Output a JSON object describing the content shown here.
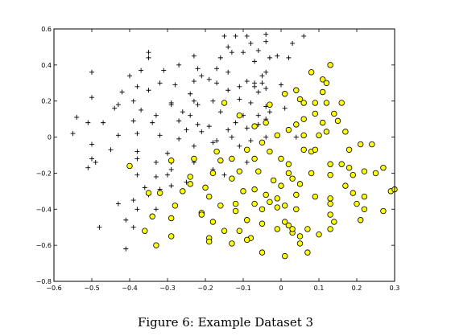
{
  "caption": "Figure 6: Example Dataset 3",
  "chart_data": {
    "type": "scatter",
    "title": "",
    "xlabel": "",
    "ylabel": "",
    "xlim": [
      -0.6,
      0.3
    ],
    "ylim": [
      -0.8,
      0.6
    ],
    "xticks": [
      -0.6,
      -0.5,
      -0.4,
      -0.3,
      -0.2,
      -0.1,
      0,
      0.1,
      0.2,
      0.3
    ],
    "yticks": [
      -0.8,
      -0.6,
      -0.4,
      -0.2,
      0,
      0.2,
      0.4,
      0.6
    ],
    "xtick_labels": [
      "−0.6",
      "−0.5",
      "−0.4",
      "−0.3",
      "−0.2",
      "−0.1",
      "0",
      "0.1",
      "0.2",
      "0.3"
    ],
    "ytick_labels": [
      "−0.8",
      "−0.6",
      "−0.4",
      "−0.2",
      "0",
      "0.2",
      "0.4",
      "0.6"
    ],
    "grid": false,
    "colors": {
      "positive": "#000000",
      "negative_fill": "#ffff00",
      "negative_edge": "#000000"
    },
    "series": [
      {
        "marker": "plus",
        "points": [
          [
            -0.09,
            0.56
          ],
          [
            -0.04,
            0.57
          ],
          [
            0.06,
            0.56
          ],
          [
            -0.15,
            0.56
          ],
          [
            -0.12,
            0.56
          ],
          [
            -0.08,
            0.52
          ],
          [
            -0.04,
            0.53
          ],
          [
            -0.14,
            0.5
          ],
          [
            -0.06,
            0.48
          ],
          [
            -0.13,
            0.47
          ],
          [
            -0.1,
            0.47
          ],
          [
            -0.23,
            0.45
          ],
          [
            -0.16,
            0.44
          ],
          [
            -0.03,
            0.44
          ],
          [
            -0.01,
            0.45
          ],
          [
            0.02,
            0.44
          ],
          [
            -0.07,
            0.42
          ],
          [
            0.03,
            0.52
          ],
          [
            -0.35,
            0.47
          ],
          [
            -0.35,
            0.44
          ],
          [
            -0.27,
            0.4
          ],
          [
            -0.31,
            0.37
          ],
          [
            -0.37,
            0.37
          ],
          [
            -0.22,
            0.38
          ],
          [
            -0.17,
            0.38
          ],
          [
            -0.14,
            0.36
          ],
          [
            -0.05,
            0.34
          ],
          [
            -0.07,
            0.3
          ],
          [
            -0.04,
            0.36
          ],
          [
            -0.5,
            0.36
          ],
          [
            -0.4,
            0.34
          ],
          [
            -0.32,
            0.3
          ],
          [
            -0.28,
            0.29
          ],
          [
            -0.23,
            0.31
          ],
          [
            -0.21,
            0.34
          ],
          [
            -0.19,
            0.32
          ],
          [
            -0.17,
            0.3
          ],
          [
            -0.11,
            0.28
          ],
          [
            -0.07,
            0.28
          ],
          [
            -0.09,
            0.31
          ],
          [
            -0.05,
            0.3
          ],
          [
            -0.38,
            0.28
          ],
          [
            -0.35,
            0.26
          ],
          [
            -0.42,
            0.25
          ],
          [
            -0.24,
            0.24
          ],
          [
            -0.14,
            0.26
          ],
          [
            -0.06,
            0.25
          ],
          [
            -0.04,
            0.27
          ],
          [
            0.0,
            0.29
          ],
          [
            -0.5,
            0.22
          ],
          [
            -0.43,
            0.18
          ],
          [
            -0.39,
            0.2
          ],
          [
            -0.29,
            0.19
          ],
          [
            -0.29,
            0.18
          ],
          [
            -0.23,
            0.2
          ],
          [
            -0.22,
            0.18
          ],
          [
            -0.18,
            0.2
          ],
          [
            -0.11,
            0.21
          ],
          [
            -0.08,
            0.19
          ],
          [
            -0.04,
            0.17
          ],
          [
            0.01,
            0.16
          ],
          [
            -0.44,
            0.16
          ],
          [
            -0.37,
            0.15
          ],
          [
            -0.33,
            0.12
          ],
          [
            -0.26,
            0.14
          ],
          [
            -0.24,
            0.12
          ],
          [
            -0.16,
            0.14
          ],
          [
            -0.1,
            0.12
          ],
          [
            -0.06,
            0.12
          ],
          [
            -0.03,
            0.14
          ],
          [
            -0.54,
            0.11
          ],
          [
            -0.51,
            0.08
          ],
          [
            -0.47,
            0.08
          ],
          [
            -0.39,
            0.09
          ],
          [
            -0.34,
            0.08
          ],
          [
            -0.27,
            0.09
          ],
          [
            -0.22,
            0.07
          ],
          [
            -0.19,
            0.06
          ],
          [
            -0.14,
            0.04
          ],
          [
            -0.12,
            0.08
          ],
          [
            -0.09,
            0.05
          ],
          [
            -0.04,
            0.1
          ],
          [
            -0.06,
            0.07
          ],
          [
            -0.55,
            0.02
          ],
          [
            -0.43,
            0.01
          ],
          [
            -0.38,
            0.02
          ],
          [
            -0.32,
            0.01
          ],
          [
            -0.25,
            0.04
          ],
          [
            -0.21,
            0.03
          ],
          [
            -0.17,
            -0.02
          ],
          [
            -0.13,
            0.0
          ],
          [
            -0.08,
            -0.02
          ],
          [
            -0.04,
            0.0
          ],
          [
            0.04,
            0.0
          ],
          [
            -0.5,
            -0.04
          ],
          [
            -0.45,
            -0.07
          ],
          [
            -0.38,
            -0.08
          ],
          [
            -0.3,
            -0.09
          ],
          [
            -0.23,
            -0.05
          ],
          [
            -0.27,
            -0.01
          ],
          [
            -0.18,
            -0.03
          ],
          [
            -0.11,
            -0.05
          ],
          [
            -0.5,
            -0.12
          ],
          [
            -0.49,
            -0.14
          ],
          [
            -0.51,
            -0.17
          ],
          [
            -0.38,
            -0.12
          ],
          [
            -0.33,
            -0.14
          ],
          [
            -0.29,
            -0.14
          ],
          [
            -0.23,
            -0.14
          ],
          [
            -0.13,
            -0.12
          ],
          [
            -0.09,
            -0.14
          ],
          [
            -0.38,
            -0.21
          ],
          [
            -0.33,
            -0.22
          ],
          [
            -0.29,
            -0.18
          ],
          [
            -0.3,
            -0.21
          ],
          [
            -0.25,
            -0.25
          ],
          [
            -0.18,
            -0.18
          ],
          [
            -0.15,
            -0.21
          ],
          [
            -0.36,
            -0.28
          ],
          [
            -0.32,
            -0.29
          ],
          [
            -0.29,
            -0.27
          ],
          [
            -0.39,
            -0.35
          ],
          [
            -0.35,
            -0.32
          ],
          [
            -0.38,
            -0.4
          ],
          [
            -0.43,
            -0.37
          ],
          [
            -0.33,
            -0.4
          ],
          [
            -0.41,
            -0.46
          ],
          [
            -0.39,
            -0.5
          ],
          [
            -0.48,
            -0.5
          ],
          [
            -0.41,
            -0.62
          ]
        ]
      },
      {
        "marker": "circle",
        "points": [
          [
            0.13,
            0.4
          ],
          [
            0.08,
            0.36
          ],
          [
            0.11,
            0.32
          ],
          [
            0.12,
            0.3
          ],
          [
            0.04,
            0.26
          ],
          [
            0.11,
            0.25
          ],
          [
            0.01,
            0.24
          ],
          [
            0.05,
            0.21
          ],
          [
            0.06,
            0.19
          ],
          [
            0.09,
            0.19
          ],
          [
            0.12,
            0.19
          ],
          [
            0.16,
            0.19
          ],
          [
            -0.15,
            0.19
          ],
          [
            -0.03,
            0.18
          ],
          [
            0.09,
            0.13
          ],
          [
            0.14,
            0.13
          ],
          [
            0.06,
            0.1
          ],
          [
            0.11,
            0.08
          ],
          [
            0.15,
            0.09
          ],
          [
            -0.11,
            0.12
          ],
          [
            -0.04,
            0.08
          ],
          [
            0.04,
            0.07
          ],
          [
            -0.07,
            0.06
          ],
          [
            0.02,
            0.04
          ],
          [
            -0.01,
            0.01
          ],
          [
            0.06,
            0.01
          ],
          [
            0.1,
            0.01
          ],
          [
            0.12,
            0.03
          ],
          [
            0.17,
            0.03
          ],
          [
            0.21,
            -0.04
          ],
          [
            0.24,
            -0.04
          ],
          [
            0.18,
            -0.07
          ],
          [
            -0.05,
            -0.03
          ],
          [
            -0.09,
            -0.07
          ],
          [
            0.06,
            -0.07
          ],
          [
            0.08,
            -0.08
          ],
          [
            0.09,
            -0.07
          ],
          [
            -0.17,
            -0.08
          ],
          [
            -0.03,
            -0.08
          ],
          [
            -0.4,
            -0.16
          ],
          [
            -0.29,
            -0.13
          ],
          [
            -0.23,
            -0.12
          ],
          [
            -0.16,
            -0.13
          ],
          [
            -0.13,
            -0.12
          ],
          [
            -0.07,
            -0.12
          ],
          [
            0.0,
            -0.12
          ],
          [
            0.02,
            -0.15
          ],
          [
            0.16,
            -0.15
          ],
          [
            0.18,
            -0.17
          ],
          [
            0.19,
            -0.21
          ],
          [
            0.22,
            -0.19
          ],
          [
            0.25,
            -0.2
          ],
          [
            0.27,
            -0.17
          ],
          [
            0.13,
            -0.15
          ],
          [
            -0.18,
            -0.2
          ],
          [
            -0.11,
            -0.19
          ],
          [
            -0.06,
            -0.19
          ],
          [
            0.02,
            -0.2
          ],
          [
            0.08,
            -0.2
          ],
          [
            0.13,
            -0.21
          ],
          [
            0.03,
            -0.23
          ],
          [
            -0.24,
            -0.22
          ],
          [
            -0.13,
            -0.23
          ],
          [
            -0.24,
            -0.26
          ],
          [
            -0.02,
            -0.24
          ],
          [
            0.05,
            -0.26
          ],
          [
            0.0,
            -0.27
          ],
          [
            0.17,
            -0.27
          ],
          [
            0.19,
            -0.31
          ],
          [
            -0.26,
            -0.3
          ],
          [
            -0.2,
            -0.28
          ],
          [
            -0.19,
            -0.33
          ],
          [
            -0.1,
            -0.3
          ],
          [
            -0.07,
            -0.29
          ],
          [
            -0.04,
            -0.32
          ],
          [
            0.04,
            -0.32
          ],
          [
            -0.35,
            -0.31
          ],
          [
            -0.32,
            -0.31
          ],
          [
            0.09,
            -0.33
          ],
          [
            0.13,
            -0.34
          ],
          [
            -0.01,
            -0.34
          ],
          [
            0.2,
            -0.37
          ],
          [
            0.22,
            -0.33
          ],
          [
            0.29,
            -0.3
          ],
          [
            0.3,
            -0.29
          ],
          [
            -0.28,
            -0.38
          ],
          [
            -0.16,
            -0.38
          ],
          [
            -0.12,
            -0.37
          ],
          [
            -0.07,
            -0.37
          ],
          [
            -0.03,
            -0.36
          ],
          [
            -0.01,
            -0.39
          ],
          [
            0.01,
            -0.38
          ],
          [
            0.13,
            -0.37
          ],
          [
            -0.21,
            -0.42
          ],
          [
            -0.21,
            -0.43
          ],
          [
            -0.12,
            -0.41
          ],
          [
            -0.05,
            -0.4
          ],
          [
            0.04,
            -0.4
          ],
          [
            0.13,
            -0.43
          ],
          [
            0.22,
            -0.4
          ],
          [
            0.27,
            -0.41
          ],
          [
            0.21,
            -0.46
          ],
          [
            -0.34,
            -0.44
          ],
          [
            -0.29,
            -0.45
          ],
          [
            -0.18,
            -0.47
          ],
          [
            -0.09,
            -0.46
          ],
          [
            -0.05,
            -0.48
          ],
          [
            0.01,
            -0.47
          ],
          [
            0.02,
            -0.49
          ],
          [
            -0.01,
            -0.51
          ],
          [
            0.03,
            -0.53
          ],
          [
            0.05,
            -0.55
          ],
          [
            0.14,
            -0.47
          ],
          [
            0.1,
            -0.54
          ],
          [
            -0.15,
            -0.52
          ],
          [
            -0.11,
            -0.52
          ],
          [
            -0.08,
            -0.56
          ],
          [
            -0.09,
            -0.57
          ],
          [
            -0.13,
            -0.59
          ],
          [
            -0.19,
            -0.56
          ],
          [
            0.03,
            -0.51
          ],
          [
            0.07,
            -0.51
          ],
          [
            -0.36,
            -0.52
          ],
          [
            -0.29,
            -0.55
          ],
          [
            -0.33,
            -0.6
          ],
          [
            -0.19,
            -0.58
          ],
          [
            0.05,
            -0.59
          ],
          [
            -0.05,
            -0.64
          ],
          [
            0.01,
            -0.66
          ],
          [
            0.07,
            -0.64
          ],
          [
            0.13,
            -0.51
          ]
        ]
      }
    ]
  }
}
